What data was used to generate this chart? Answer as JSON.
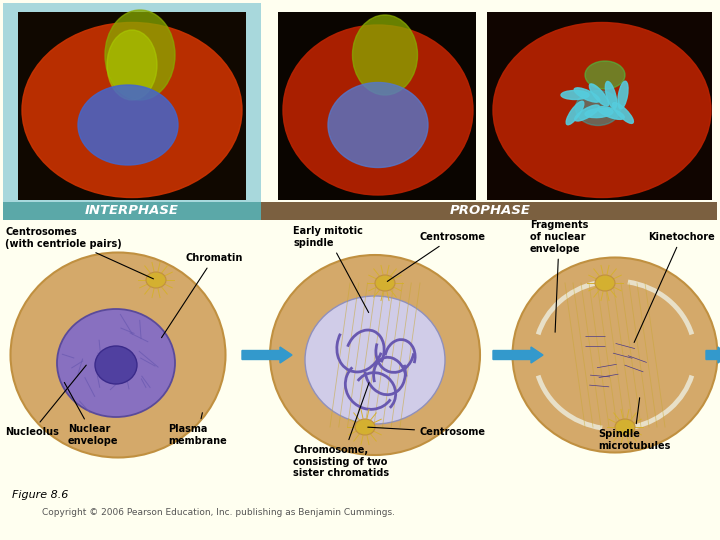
{
  "bg_color": "#FFFFF0",
  "top_left_bg": "#A8D8DC",
  "top_right_bg": "#FFFFF0",
  "header_interphase_color": "#5BA8A8",
  "header_prophase_color": "#7B6040",
  "header_text_color": "#FFFFFF",
  "interphase_label": "INTERPHASE",
  "prophase_label": "PROPHASE",
  "figure_label": "Figure 8.6",
  "copyright_text": "Copyright © 2006 Pearson Education, Inc. publishing as Benjamin Cummings.",
  "labels": {
    "centrosomes": "Centrosomes\n(with centriole pairs)",
    "chromatin": "Chromatin",
    "nucleolus": "Nucleolus",
    "nuclear_envelope": "Nuclear\nenvelope",
    "plasma_membrane": "Plasma\nmembrane",
    "early_mitotic_spindle": "Early mitotic\nspindle",
    "centrosome2": "Centrosome",
    "chromosome": "Chromosome,\nconsisting of two\nsister chromatids",
    "centrosome3": "Centrosome",
    "fragments": "Fragments\nof nuclear\nenvelope",
    "kinetochore": "Kinetochore",
    "spindle_microtubules": "Spindle\nmicrotubules"
  },
  "cell1": {
    "outer_color": "#D4A96A",
    "outer_edge": "#C09040",
    "nucleus_color": "#8870C0",
    "nucleus_edge": "#5A4A9A",
    "nucleolus_color": "#5040A0",
    "centrosome_color": "#D4B030",
    "chromatin_color": "#6858B0"
  },
  "cell2": {
    "outer_color": "#D4A96A",
    "outer_edge": "#C09040",
    "nucleus_color": "#D0CCE8",
    "nucleus_edge": "#9090BB",
    "chromosome_color": "#6858B0",
    "centrosome_color": "#D4B030",
    "spindle_color": "#C8A830"
  },
  "cell3": {
    "outer_color": "#D4A96A",
    "outer_edge": "#C09040",
    "chromosome_color": "#6858B0",
    "centrosome_color": "#D4B030",
    "spindle_color": "#C8A830",
    "nuc_frag_color": "#E8E4D0"
  },
  "arrow_color": "#3399CC",
  "label_font_size": 7.0,
  "header_font_size": 9.5,
  "fig_label_fontsize": 8,
  "copyright_fontsize": 6.5
}
